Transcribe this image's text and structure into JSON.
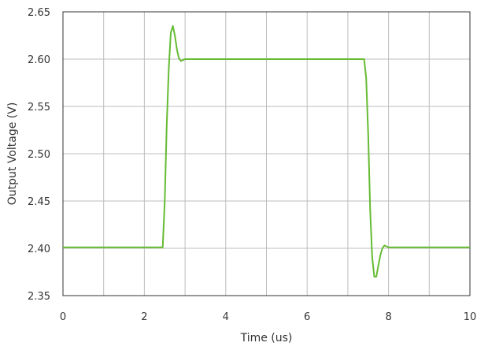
{
  "chart_data": {
    "type": "line",
    "xlabel": "Time (us)",
    "ylabel": "Output Voltage (V)",
    "xlim": [
      0,
      10
    ],
    "ylim": [
      2.35,
      2.65
    ],
    "x_ticks": [
      "0",
      "2",
      "4",
      "6",
      "8",
      "10"
    ],
    "y_ticks": [
      "2.35",
      "2.40",
      "2.45",
      "2.50",
      "2.55",
      "2.60",
      "2.65"
    ],
    "grid": true,
    "line_color": "#66bb33",
    "grid_color": "#bdbdbd",
    "series": [
      {
        "x": [
          0,
          0.5,
          1.0,
          1.5,
          2.0,
          2.45,
          2.5,
          2.55,
          2.6,
          2.65,
          2.7,
          2.75,
          2.8,
          2.85,
          2.9,
          2.95,
          3.0,
          3.1,
          3.2,
          3.5,
          4.0,
          5.0,
          6.0,
          7.0,
          7.4,
          7.45,
          7.5,
          7.55,
          7.6,
          7.65,
          7.7,
          7.75,
          7.8,
          7.85,
          7.9,
          7.95,
          8.0,
          8.1,
          8.2,
          8.5,
          9.0,
          9.5,
          10.0
        ],
        "y": [
          2.401,
          2.401,
          2.401,
          2.401,
          2.401,
          2.401,
          2.45,
          2.53,
          2.59,
          2.628,
          2.635,
          2.625,
          2.61,
          2.601,
          2.598,
          2.599,
          2.6,
          2.6,
          2.6,
          2.6,
          2.6,
          2.6,
          2.6,
          2.6,
          2.6,
          2.58,
          2.52,
          2.44,
          2.39,
          2.37,
          2.37,
          2.382,
          2.393,
          2.4,
          2.403,
          2.402,
          2.401,
          2.401,
          2.401,
          2.401,
          2.401,
          2.401,
          2.401
        ]
      }
    ]
  }
}
